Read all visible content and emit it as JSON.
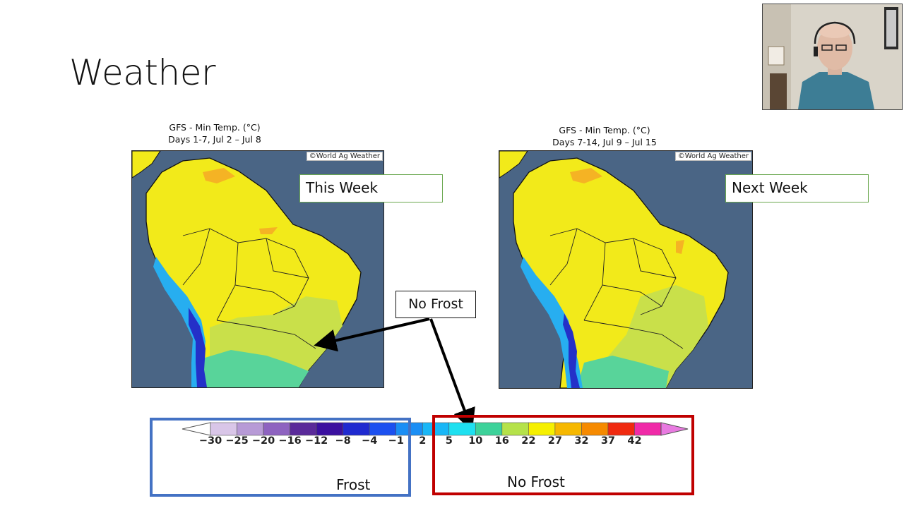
{
  "slide": {
    "title": "Weather"
  },
  "maps": [
    {
      "caption_line1": "GFS - Min Temp. (°C)",
      "caption_line2": "Days 1-7, Jul 2 – Jul 8",
      "credit": "©World Ag Weather",
      "label": "This Week"
    },
    {
      "caption_line1": "GFS - Min Temp. (°C)",
      "caption_line2": "Days 7-14, Jul 9 – Jul 15",
      "credit": "©World Ag Weather",
      "label": "Next Week"
    }
  ],
  "callout": {
    "text": "No Frost"
  },
  "legend": {
    "ticks": [
      "−30",
      "−25",
      "−20",
      "−16",
      "−12",
      "−8",
      "−4",
      "−1",
      "2",
      "5",
      "10",
      "16",
      "22",
      "27",
      "32",
      "37",
      "42"
    ],
    "colors": [
      "#d9c6e8",
      "#b79ad6",
      "#8e63c0",
      "#5a2a9a",
      "#3b10a0",
      "#1f2ad0",
      "#1c50f0",
      "#1a8ef5",
      "#19b7f7",
      "#1ee0f0",
      "#3dd29a",
      "#b5e24a",
      "#f6f000",
      "#f6b800",
      "#f68a00",
      "#f02a10",
      "#f02aa8",
      "#e87ae0"
    ],
    "frost_label": "Frost",
    "no_frost_label": "No Frost",
    "frost_box_color": "#4472c4",
    "no_frost_box_color": "#c00000"
  },
  "colors": {
    "ocean": "#4a6585",
    "warm": "#f2ea1a",
    "mild": "#c9e04a",
    "cool": "#58d49a",
    "cold": "#27aef0",
    "frost": "#2430c8",
    "hot": "#f5b324"
  }
}
